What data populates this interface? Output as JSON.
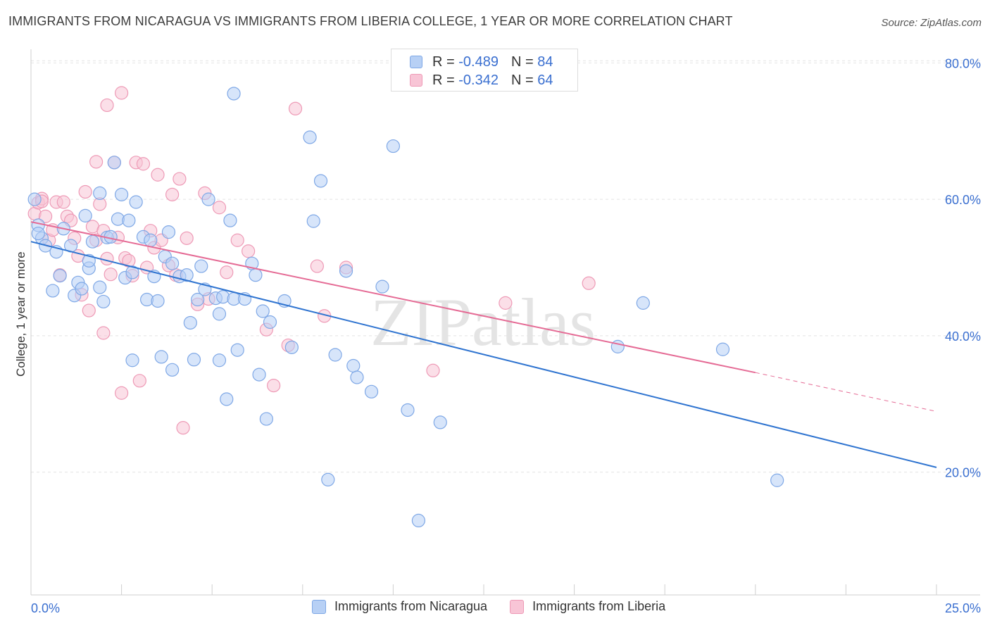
{
  "title": "IMMIGRANTS FROM NICARAGUA VS IMMIGRANTS FROM LIBERIA COLLEGE, 1 YEAR OR MORE CORRELATION CHART",
  "source": "Source: ZipAtlas.com",
  "watermark": "ZIPatlas",
  "legend": {
    "nicaragua_label": "Immigrants from Nicaragua",
    "liberia_label": "Immigrants from Liberia"
  },
  "stats": {
    "nicaragua": {
      "r_label": "R =",
      "r_value": "-0.489",
      "n_label": "N =",
      "n_value": "84"
    },
    "liberia": {
      "r_label": "R =",
      "r_value": "-0.342",
      "n_label": "N =",
      "n_value": "64"
    }
  },
  "colors": {
    "nicaragua_fill": "#b7d0f5",
    "nicaragua_stroke": "#7fa8e6",
    "nicaragua_line": "#2f74d0",
    "liberia_fill": "#f8c5d6",
    "liberia_stroke": "#ee9ab6",
    "liberia_line": "#e56b95",
    "axis_text": "#3a6fd0",
    "grid": "#e3e3e3"
  },
  "chart_data": {
    "type": "scatter",
    "xlabel": "",
    "ylabel": "College, 1 year or more",
    "xlim": [
      0,
      25
    ],
    "ylim": [
      2,
      82
    ],
    "x_tick_labels": [
      {
        "value": 0,
        "label": "0.0%"
      },
      {
        "value": 25,
        "label": "25.0%"
      }
    ],
    "y_tick_labels": [
      {
        "value": 20,
        "label": "20.0%"
      },
      {
        "value": 40,
        "label": "40.0%"
      },
      {
        "value": 60,
        "label": "60.0%"
      },
      {
        "value": 80,
        "label": "80.0%"
      }
    ],
    "grid": true,
    "legend_position": "bottom",
    "series": [
      {
        "name": "Immigrants from Nicaragua",
        "color": "#b7d0f5",
        "trendline": {
          "x": [
            0,
            25
          ],
          "y": [
            53.8,
            20.7
          ],
          "style": "solid"
        },
        "points": [
          [
            0.1,
            60.0
          ],
          [
            0.2,
            56.2
          ],
          [
            0.3,
            54.3
          ],
          [
            0.4,
            53.2
          ],
          [
            0.6,
            46.6
          ],
          [
            0.7,
            52.3
          ],
          [
            0.8,
            48.8
          ],
          [
            0.9,
            55.7
          ],
          [
            1.1,
            53.2
          ],
          [
            1.2,
            45.9
          ],
          [
            1.3,
            47.8
          ],
          [
            1.4,
            46.9
          ],
          [
            1.5,
            57.6
          ],
          [
            1.6,
            49.9
          ],
          [
            1.6,
            51.0
          ],
          [
            1.7,
            53.8
          ],
          [
            1.9,
            60.9
          ],
          [
            1.9,
            47.1
          ],
          [
            2.0,
            45.0
          ],
          [
            2.1,
            54.4
          ],
          [
            2.2,
            54.5
          ],
          [
            2.3,
            65.4
          ],
          [
            2.4,
            57.1
          ],
          [
            2.5,
            60.7
          ],
          [
            2.6,
            48.5
          ],
          [
            2.7,
            56.9
          ],
          [
            2.8,
            49.3
          ],
          [
            2.8,
            36.4
          ],
          [
            2.9,
            59.6
          ],
          [
            3.1,
            54.5
          ],
          [
            3.2,
            45.3
          ],
          [
            3.3,
            54.0
          ],
          [
            3.4,
            48.7
          ],
          [
            3.5,
            45.1
          ],
          [
            3.6,
            36.9
          ],
          [
            3.7,
            51.6
          ],
          [
            3.8,
            55.2
          ],
          [
            3.9,
            35.0
          ],
          [
            3.9,
            50.6
          ],
          [
            4.1,
            48.7
          ],
          [
            4.3,
            48.9
          ],
          [
            4.4,
            41.9
          ],
          [
            4.5,
            36.5
          ],
          [
            4.6,
            45.3
          ],
          [
            4.7,
            50.2
          ],
          [
            4.8,
            46.8
          ],
          [
            4.9,
            60.0
          ],
          [
            5.1,
            45.5
          ],
          [
            5.2,
            36.4
          ],
          [
            5.2,
            43.2
          ],
          [
            5.3,
            45.7
          ],
          [
            5.4,
            30.7
          ],
          [
            5.5,
            56.9
          ],
          [
            5.6,
            45.4
          ],
          [
            5.6,
            75.5
          ],
          [
            5.7,
            37.9
          ],
          [
            5.9,
            45.4
          ],
          [
            6.1,
            50.6
          ],
          [
            6.2,
            48.9
          ],
          [
            6.3,
            34.3
          ],
          [
            6.4,
            43.6
          ],
          [
            6.5,
            27.8
          ],
          [
            6.6,
            42.0
          ],
          [
            7.0,
            45.1
          ],
          [
            7.2,
            38.3
          ],
          [
            7.7,
            69.1
          ],
          [
            7.8,
            56.8
          ],
          [
            8.0,
            62.7
          ],
          [
            8.2,
            18.9
          ],
          [
            8.4,
            37.2
          ],
          [
            8.7,
            49.5
          ],
          [
            8.9,
            35.6
          ],
          [
            9.0,
            33.9
          ],
          [
            9.4,
            31.8
          ],
          [
            9.7,
            47.2
          ],
          [
            10.0,
            67.8
          ],
          [
            10.4,
            29.1
          ],
          [
            10.7,
            12.9
          ],
          [
            11.3,
            27.3
          ],
          [
            16.2,
            38.4
          ],
          [
            16.9,
            44.8
          ],
          [
            19.1,
            38.0
          ],
          [
            20.6,
            18.8
          ],
          [
            0.2,
            55.0
          ]
        ]
      },
      {
        "name": "Immigrants from Liberia",
        "color": "#f8c5d6",
        "trendline": {
          "x": [
            0,
            20
          ],
          "y": [
            56.7,
            34.6
          ],
          "style": "solid",
          "dashed_extension_to": [
            25,
            28.9
          ]
        },
        "points": [
          [
            0.1,
            57.9
          ],
          [
            0.2,
            59.5
          ],
          [
            0.3,
            60.1
          ],
          [
            0.4,
            57.5
          ],
          [
            0.5,
            54.0
          ],
          [
            0.6,
            55.5
          ],
          [
            0.7,
            59.6
          ],
          [
            0.8,
            48.9
          ],
          [
            0.9,
            59.6
          ],
          [
            1.0,
            57.5
          ],
          [
            1.1,
            56.9
          ],
          [
            1.2,
            54.3
          ],
          [
            1.3,
            51.7
          ],
          [
            1.4,
            46.0
          ],
          [
            1.5,
            61.1
          ],
          [
            1.6,
            43.7
          ],
          [
            1.7,
            56.0
          ],
          [
            1.8,
            54.0
          ],
          [
            1.8,
            65.5
          ],
          [
            1.9,
            59.3
          ],
          [
            2.0,
            55.4
          ],
          [
            2.0,
            40.4
          ],
          [
            2.1,
            73.8
          ],
          [
            2.1,
            51.3
          ],
          [
            2.2,
            49.0
          ],
          [
            2.3,
            65.4
          ],
          [
            2.4,
            54.4
          ],
          [
            2.5,
            31.6
          ],
          [
            2.5,
            75.6
          ],
          [
            2.6,
            51.4
          ],
          [
            2.7,
            51.0
          ],
          [
            2.8,
            48.8
          ],
          [
            2.9,
            65.4
          ],
          [
            3.0,
            33.4
          ],
          [
            3.1,
            65.2
          ],
          [
            3.2,
            50.0
          ],
          [
            3.3,
            55.4
          ],
          [
            3.4,
            52.9
          ],
          [
            3.5,
            63.6
          ],
          [
            3.6,
            54.0
          ],
          [
            3.8,
            50.3
          ],
          [
            3.9,
            60.7
          ],
          [
            4.0,
            48.9
          ],
          [
            4.1,
            63.0
          ],
          [
            4.2,
            26.5
          ],
          [
            4.3,
            54.3
          ],
          [
            4.6,
            44.6
          ],
          [
            4.8,
            60.9
          ],
          [
            4.9,
            45.4
          ],
          [
            5.2,
            58.8
          ],
          [
            5.4,
            49.3
          ],
          [
            5.7,
            54.0
          ],
          [
            6.0,
            52.4
          ],
          [
            6.5,
            40.9
          ],
          [
            6.7,
            32.7
          ],
          [
            7.1,
            38.6
          ],
          [
            7.3,
            73.3
          ],
          [
            7.9,
            50.2
          ],
          [
            8.1,
            42.9
          ],
          [
            8.7,
            50.0
          ],
          [
            11.1,
            34.9
          ],
          [
            13.1,
            44.8
          ],
          [
            15.4,
            47.7
          ],
          [
            0.3,
            59.7
          ]
        ]
      }
    ]
  }
}
